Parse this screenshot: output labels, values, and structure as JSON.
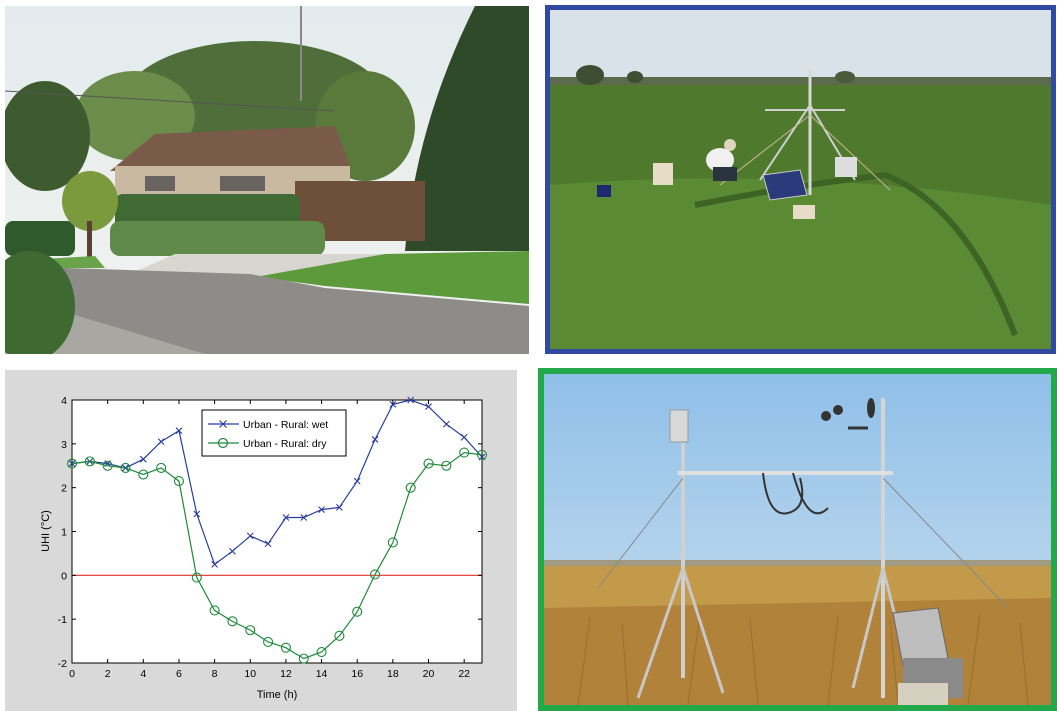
{
  "chart_data": {
    "type": "line",
    "xlabel": "Time (h)",
    "ylabel": "UHI (°C)",
    "xlim": [
      0,
      23
    ],
    "ylim": [
      -2,
      4
    ],
    "xticks": [
      0,
      2,
      4,
      6,
      8,
      10,
      12,
      14,
      16,
      18,
      20,
      22
    ],
    "yticks": [
      -2,
      -1,
      0,
      1,
      2,
      3,
      4
    ],
    "grid": false,
    "legend_position": "top-center",
    "reference_line": {
      "y": 0,
      "color": "#e0302a"
    },
    "series": [
      {
        "name": "Urban - Rural: wet",
        "marker": "x",
        "color": "#2b3ea0",
        "x": [
          0,
          1,
          2,
          3,
          4,
          5,
          6,
          7,
          8,
          9,
          10,
          11,
          12,
          13,
          14,
          15,
          16,
          17,
          18,
          19,
          20,
          21,
          22,
          23
        ],
        "y": [
          2.55,
          2.6,
          2.55,
          2.45,
          2.65,
          3.05,
          3.3,
          1.4,
          0.25,
          0.55,
          0.9,
          0.72,
          1.32,
          1.32,
          1.5,
          1.55,
          2.15,
          3.1,
          3.9,
          4.0,
          3.85,
          3.45,
          3.15,
          2.7
        ]
      },
      {
        "name": "Urban - Rural: dry",
        "marker": "o",
        "color": "#1f8a3a",
        "x": [
          0,
          1,
          2,
          3,
          4,
          5,
          6,
          7,
          8,
          9,
          10,
          11,
          12,
          13,
          14,
          15,
          16,
          17,
          18,
          19,
          20,
          21,
          22,
          23
        ],
        "y": [
          2.55,
          2.6,
          2.5,
          2.45,
          2.3,
          2.45,
          2.15,
          -0.05,
          -0.8,
          -1.05,
          -1.25,
          -1.52,
          -1.65,
          -1.9,
          -1.75,
          -1.38,
          -0.83,
          0.02,
          0.75,
          2.0,
          2.55,
          2.5,
          2.8,
          2.75
        ]
      }
    ]
  }
}
